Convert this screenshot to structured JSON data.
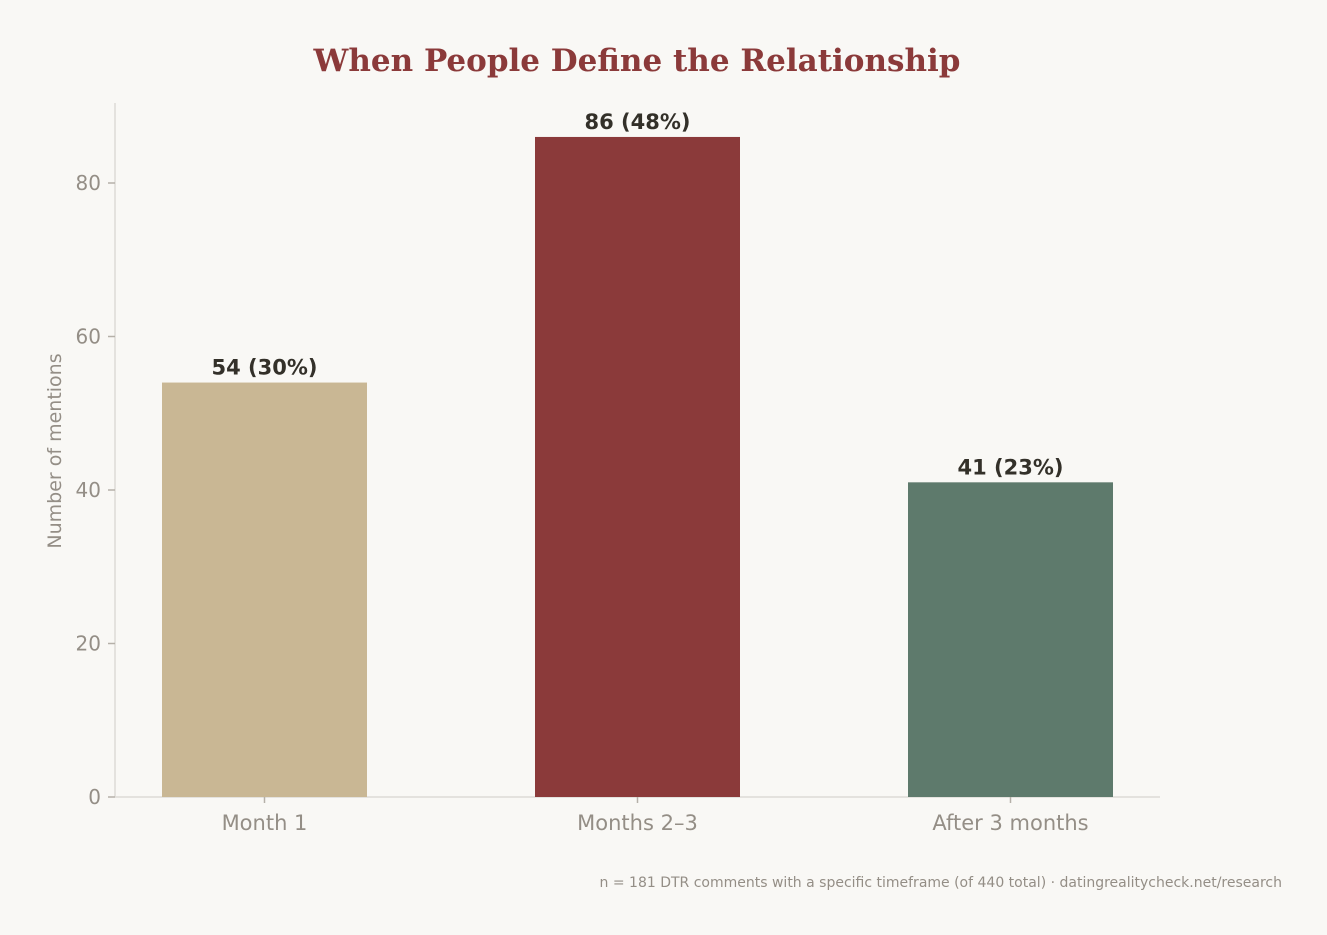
{
  "chart_data": {
    "type": "bar",
    "title": "When People Define the Relationship",
    "ylabel": "Number of mentions",
    "xlabel": "",
    "categories": [
      "Month 1",
      "Months 2–3",
      "After 3 months"
    ],
    "values": [
      54,
      86,
      41
    ],
    "data_labels": [
      "54 (30%)",
      "86 (48%)",
      "41 (23%)"
    ],
    "colors": [
      "#c9b794",
      "#8b3a3a",
      "#5e7a6c"
    ],
    "ylim": [
      0,
      90
    ],
    "yticks": [
      0,
      20,
      40,
      60,
      80
    ],
    "grid": false,
    "legend": "none"
  },
  "footnote": "n = 181 DTR comments with a specific timeframe (of 440 total) · datingrealitycheck.net/research"
}
